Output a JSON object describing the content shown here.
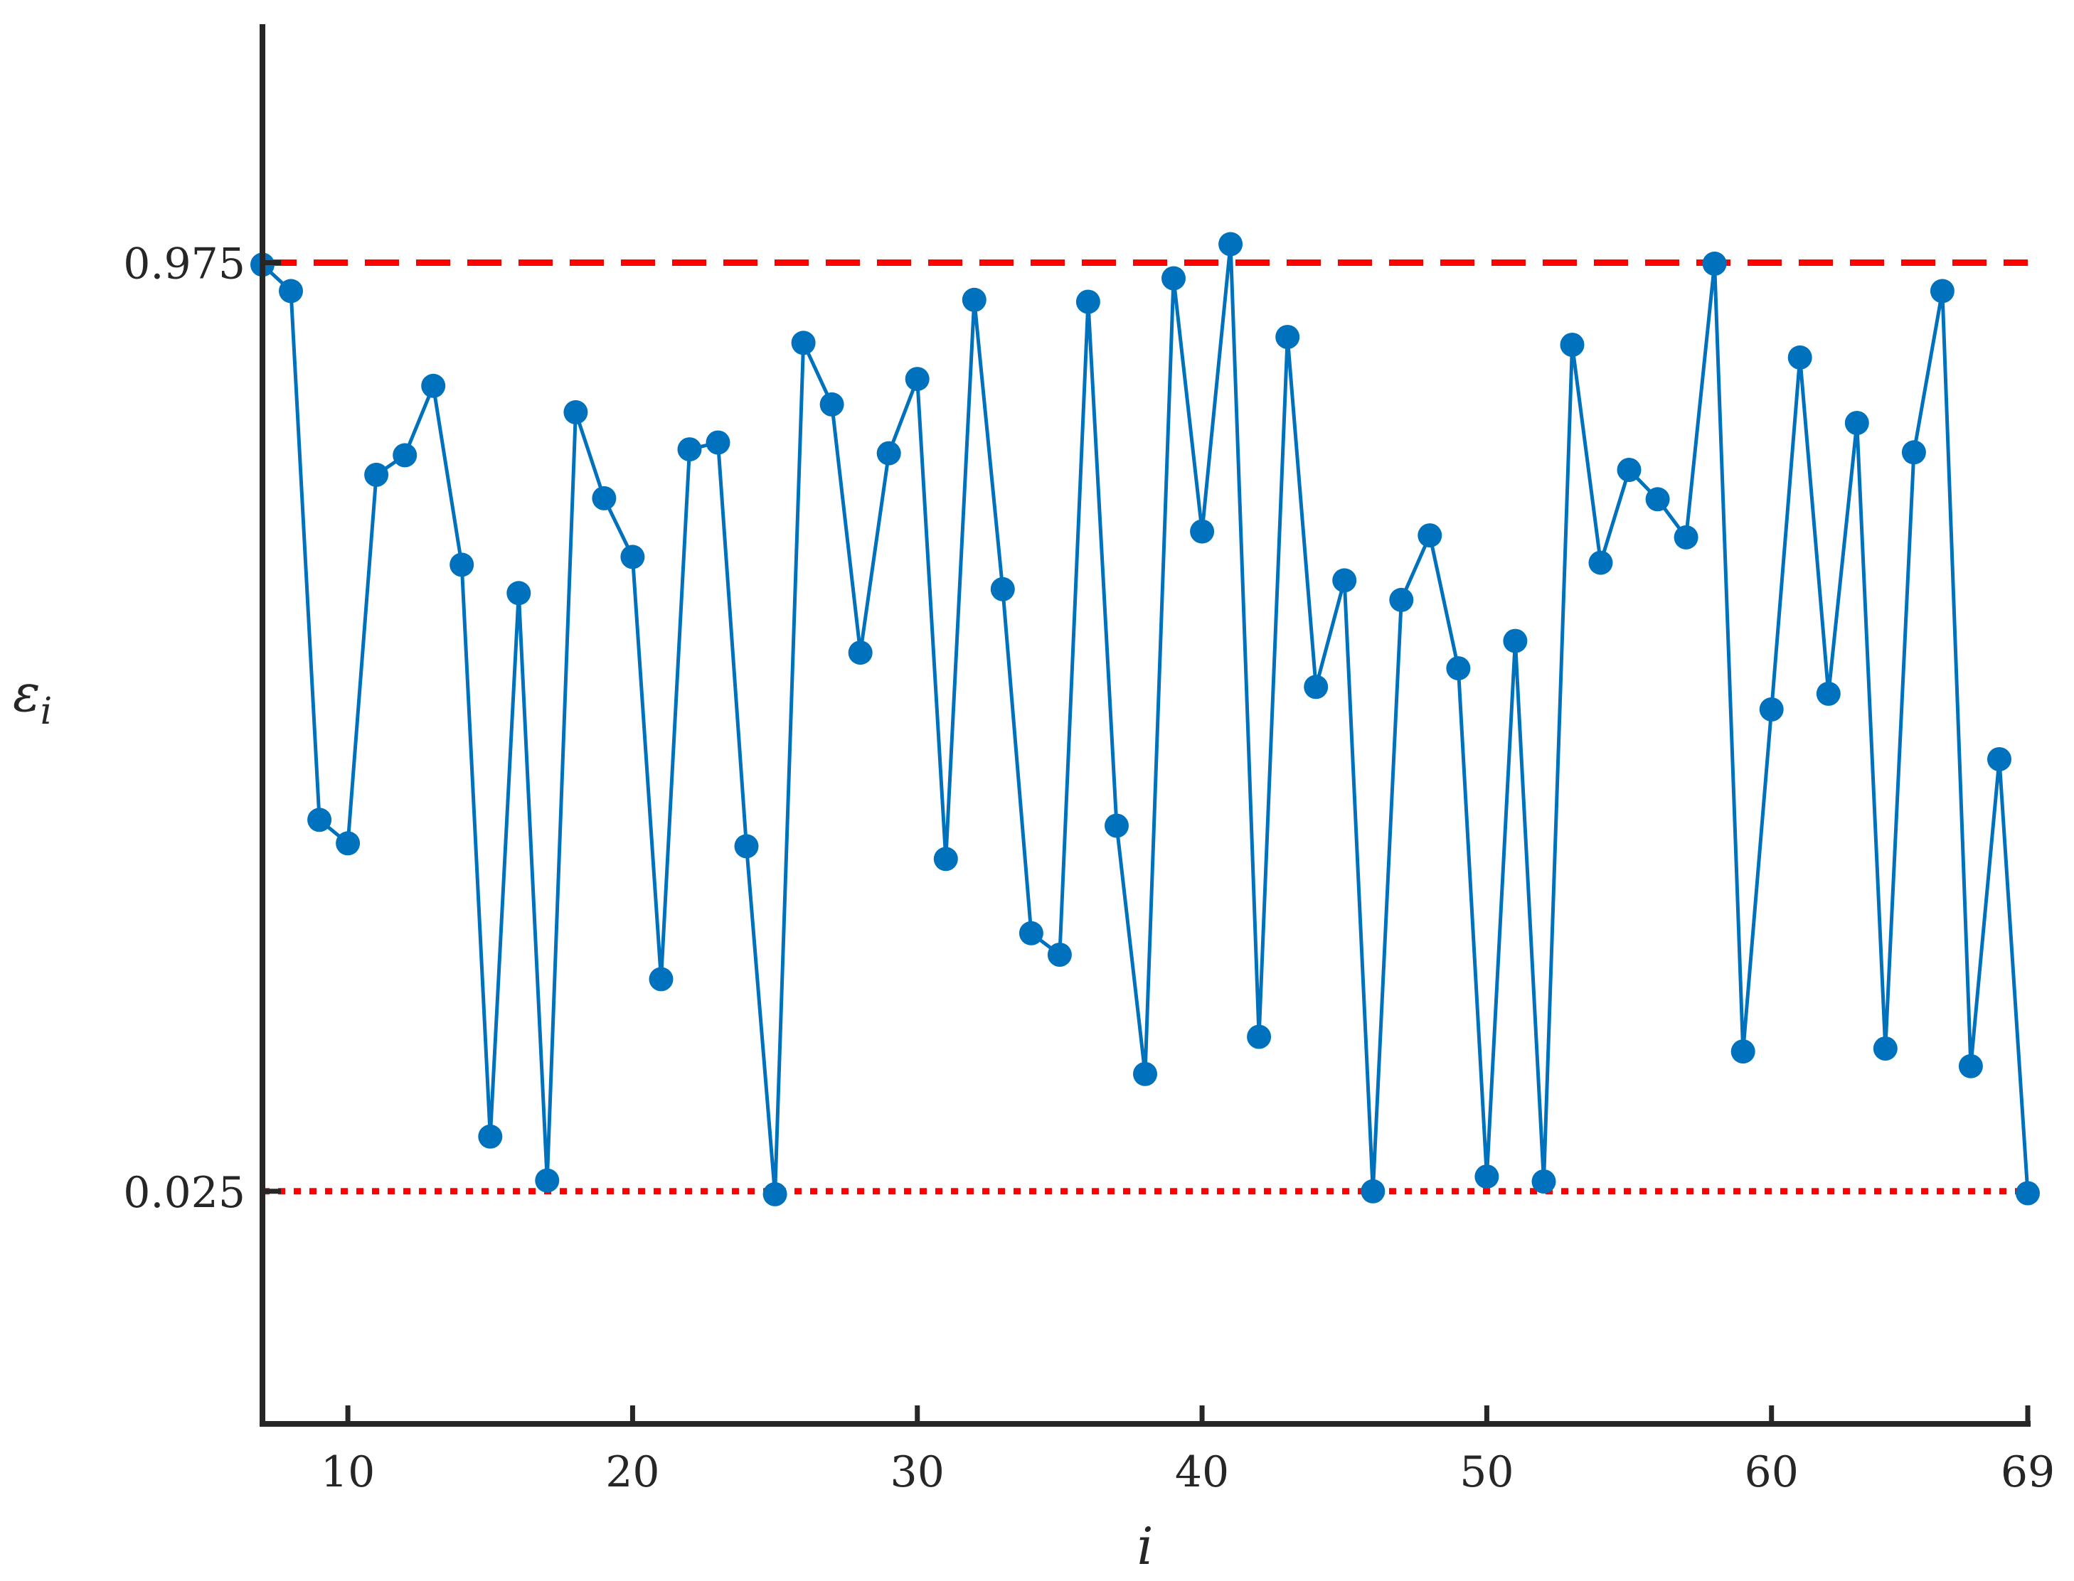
{
  "chart_data": {
    "type": "line",
    "xlabel": "i",
    "ylabel": "ε",
    "ylabel_subscript": "i",
    "xlim": [
      7,
      69
    ],
    "ylim": [
      -0.213,
      1.219
    ],
    "x_ticks": [
      10,
      20,
      30,
      40,
      50,
      60,
      69
    ],
    "x_tick_labels": [
      "10",
      "20",
      "30",
      "40",
      "50",
      "60",
      "69"
    ],
    "y_ticks": [
      0.025,
      0.975
    ],
    "y_tick_labels": [
      "0.025",
      "0.975"
    ],
    "grid": false,
    "legend": "none",
    "series": [
      {
        "color": "#0072BD",
        "marker": "circle",
        "x": [
          7,
          8,
          9,
          10,
          11,
          12,
          13,
          14,
          15,
          16,
          17,
          18,
          19,
          20,
          21,
          22,
          23,
          24,
          25,
          26,
          27,
          28,
          29,
          30,
          31,
          32,
          33,
          34,
          35,
          36,
          37,
          38,
          39,
          40,
          41,
          42,
          43,
          44,
          45,
          46,
          47,
          48,
          49,
          50,
          51,
          52,
          53,
          54,
          55,
          56,
          57,
          58,
          59,
          60,
          61,
          62,
          63,
          64,
          65,
          66,
          67,
          68,
          69
        ],
        "y": [
          0.973,
          0.946,
          0.405,
          0.381,
          0.758,
          0.778,
          0.849,
          0.666,
          0.081,
          0.637,
          0.036,
          0.822,
          0.734,
          0.674,
          0.242,
          0.784,
          0.791,
          0.378,
          0.022,
          0.893,
          0.83,
          0.576,
          0.78,
          0.856,
          0.365,
          0.937,
          0.641,
          0.289,
          0.267,
          0.935,
          0.399,
          0.145,
          0.959,
          0.7,
          0.994,
          0.183,
          0.899,
          0.541,
          0.65,
          0.025,
          0.63,
          0.696,
          0.56,
          0.04,
          0.588,
          0.035,
          0.891,
          0.668,
          0.763,
          0.733,
          0.694,
          0.974,
          0.168,
          0.518,
          0.878,
          0.534,
          0.811,
          0.171,
          0.781,
          0.946,
          0.153,
          0.467,
          0.023
        ]
      }
    ],
    "reference_lines": [
      {
        "y": 0.975,
        "style": "dashed",
        "color": "#FF0000"
      },
      {
        "y": 0.025,
        "style": "dotted",
        "color": "#FF0000"
      }
    ]
  }
}
